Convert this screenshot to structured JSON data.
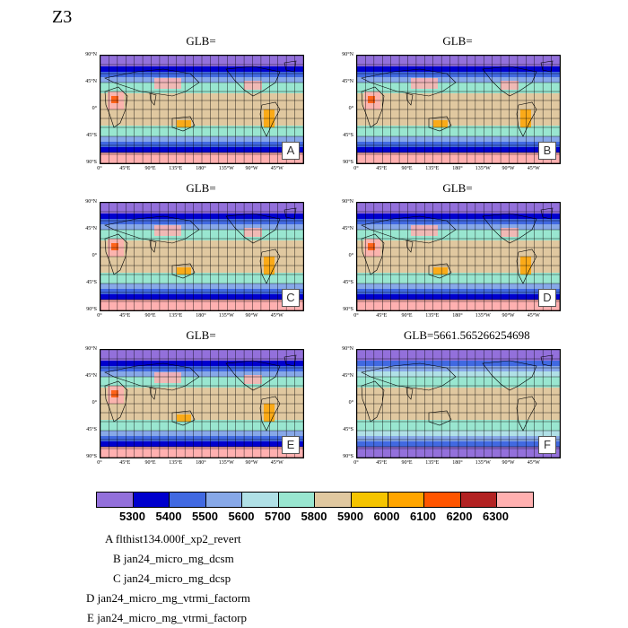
{
  "figure_title": "Z3",
  "panels": [
    {
      "title": "GLB=",
      "tag": "A"
    },
    {
      "title": "GLB=",
      "tag": "B"
    },
    {
      "title": "GLB=",
      "tag": "C"
    },
    {
      "title": "GLB=",
      "tag": "D"
    },
    {
      "title": "GLB=",
      "tag": "E"
    },
    {
      "title": "GLB=5661.565266254698",
      "tag": "F"
    }
  ],
  "lat_ticks": [
    "90°N",
    "45°N",
    "0°",
    "45°S",
    "90°S"
  ],
  "lon_ticks": [
    "0°",
    "45°E",
    "90°E",
    "135°E",
    "180°",
    "135°W",
    "90°W",
    "45°W"
  ],
  "colorbar": {
    "colors": [
      "#9370db",
      "#0000cd",
      "#4169e1",
      "#87a8e8",
      "#b0e0e6",
      "#99e6d0",
      "#e0c8a0",
      "#f5c400",
      "#ffa500",
      "#ff5500",
      "#b22222",
      "#ffb0b0"
    ],
    "labels": [
      "5300",
      "5400",
      "5500",
      "5600",
      "5700",
      "5800",
      "5900",
      "6000",
      "6100",
      "6200",
      "6300"
    ]
  },
  "legend": [
    {
      "key": "A",
      "text": "flthist134.000f_xp2_revert"
    },
    {
      "key": "B",
      "text": "jan24_micro_mg_dcsm"
    },
    {
      "key": "C",
      "text": "jan24_micro_mg_dcsp"
    },
    {
      "key": "D",
      "text": "jan24_micro_mg_vtrmi_factorm"
    },
    {
      "key": "E",
      "text": "jan24_micro_mg_vtrmi_factorp"
    }
  ]
}
